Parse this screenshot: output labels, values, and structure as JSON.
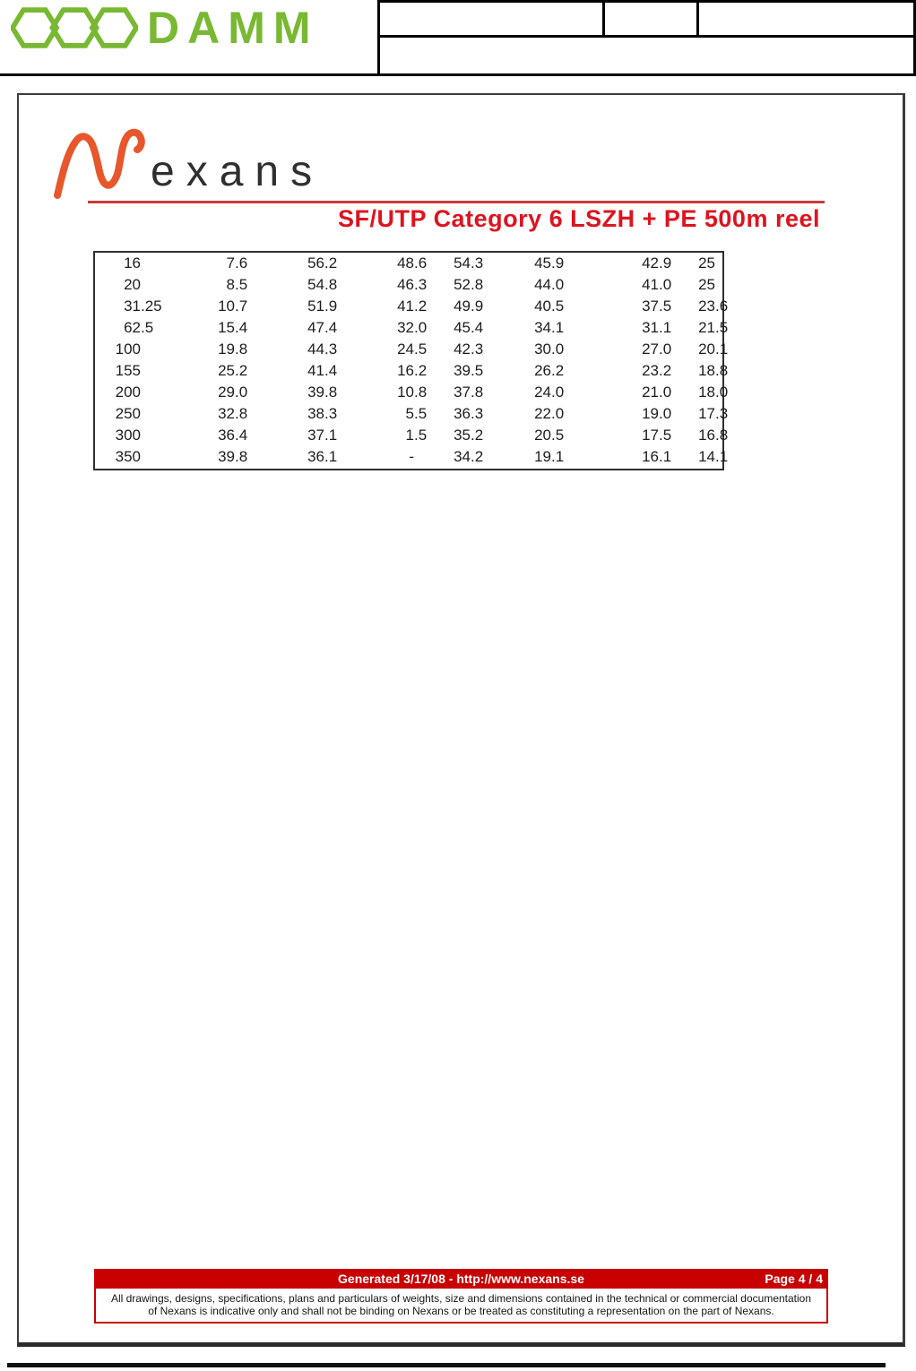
{
  "header": {
    "brand_text": "DAMM",
    "brand_color": "#79B832"
  },
  "document": {
    "logo_wordmark": "exans",
    "logo_orange": "#E8572B",
    "title": "SF/UTP Category 6 LSZH + PE 500m reel",
    "title_color": "#DC1420",
    "table": {
      "rows": [
        [
          "16",
          "7.6",
          "56.2",
          "48.6",
          "54.3",
          "45.9",
          "42.9",
          "25"
        ],
        [
          "20",
          "8.5",
          "54.8",
          "46.3",
          "52.8",
          "44.0",
          "41.0",
          "25"
        ],
        [
          "31.25",
          "10.7",
          "51.9",
          "41.2",
          "49.9",
          "40.5",
          "37.5",
          "23.6"
        ],
        [
          "62.5",
          "15.4",
          "47.4",
          "32.0",
          "45.4",
          "34.1",
          "31.1",
          "21.5"
        ],
        [
          "100",
          "19.8",
          "44.3",
          "24.5",
          "42.3",
          "30.0",
          "27.0",
          "20.1"
        ],
        [
          "155",
          "25.2",
          "41.4",
          "16.2",
          "39.5",
          "26.2",
          "23.2",
          "18.8"
        ],
        [
          "200",
          "29.0",
          "39.8",
          "10.8",
          "37.8",
          "24.0",
          "21.0",
          "18.0"
        ],
        [
          "250",
          "32.8",
          "38.3",
          "5.5",
          "36.3",
          "22.0",
          "19.0",
          "17.3"
        ],
        [
          "300",
          "36.4",
          "37.1",
          "1.5",
          "35.2",
          "20.5",
          "17.5",
          "16.8"
        ],
        [
          "350",
          "39.8",
          "36.1",
          "-",
          "34.2",
          "19.1",
          "16.1",
          "14.1"
        ]
      ]
    },
    "footer": {
      "generated_text": "Generated 3/17/08 - http://www.nexans.se",
      "page_label": "Page 4 / 4",
      "bar_color": "#C80000",
      "disclaimer": "All drawings, designs, specifications, plans and particulars of weights, size and dimensions contained in the technical or commercial documentation of Nexans is indicative only and shall not be binding on Nexans or be treated as constituting a representation on the part of Nexans."
    }
  }
}
